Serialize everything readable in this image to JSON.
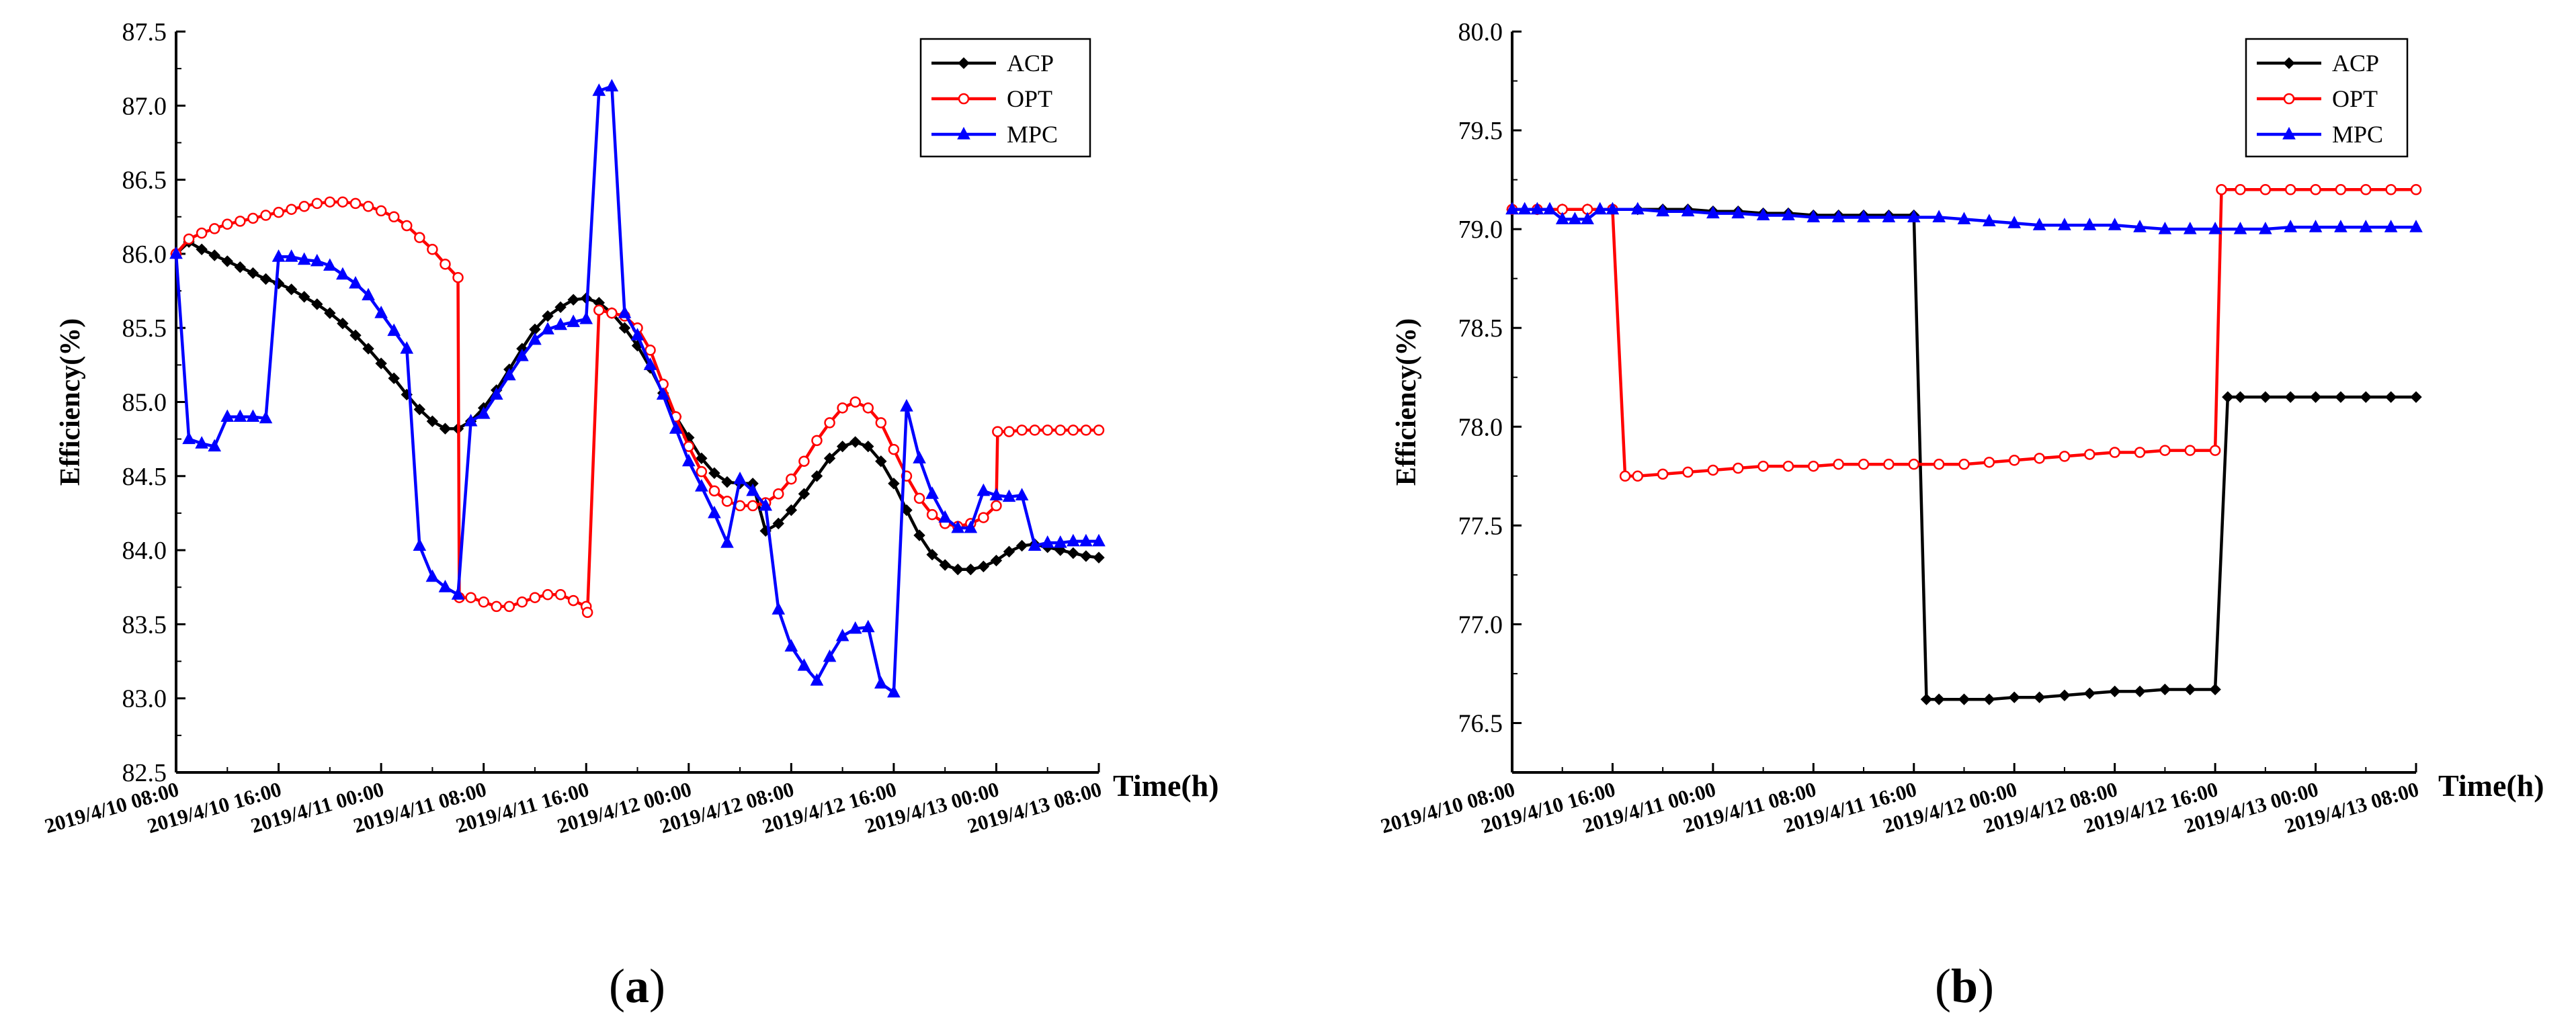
{
  "chart_data": [
    {
      "type": "line",
      "panel_label": "(a)",
      "panel_label_parts": [
        "(",
        "a",
        ")"
      ],
      "ylabel": "Efficiency(%)",
      "xlabel": "Time(h)",
      "ylim": [
        82.5,
        87.5
      ],
      "yticks": [
        "82.5",
        "83.0",
        "83.5",
        "84.0",
        "84.5",
        "85.0",
        "85.5",
        "86.0",
        "86.5",
        "87.0",
        "87.5"
      ],
      "xlim": [
        0,
        72
      ],
      "xticks": [
        "2019/4/10 08:00",
        "2019/4/10 16:00",
        "2019/4/11 00:00",
        "2019/4/11 08:00",
        "2019/4/11 16:00",
        "2019/4/12 00:00",
        "2019/4/12 08:00",
        "2019/4/12 16:00",
        "2019/4/13 00:00",
        "2019/4/13 08:00"
      ],
      "legend": "top-right",
      "grid": false,
      "series": [
        {
          "name": "ACP",
          "color": "#000000",
          "marker": "diamond",
          "x": [
            0,
            1,
            2,
            3,
            4,
            5,
            6,
            7,
            8,
            9,
            10,
            11,
            12,
            13,
            14,
            15,
            16,
            17,
            18,
            19,
            20,
            21,
            22,
            23,
            24,
            25,
            26,
            27,
            28,
            29,
            30,
            31,
            32,
            33,
            34,
            35,
            36,
            37,
            38,
            39,
            40,
            41,
            42,
            43,
            44,
            45,
            46,
            47,
            48,
            49,
            50,
            51,
            52,
            53,
            54,
            55,
            56,
            57,
            58,
            59,
            60,
            61,
            62,
            63,
            64,
            65,
            66,
            67,
            68,
            69,
            70,
            71,
            72
          ],
          "values": [
            86.0,
            86.08,
            86.03,
            85.99,
            85.95,
            85.91,
            85.87,
            85.83,
            85.8,
            85.76,
            85.71,
            85.66,
            85.6,
            85.53,
            85.45,
            85.36,
            85.26,
            85.16,
            85.05,
            84.95,
            84.87,
            84.82,
            84.82,
            84.87,
            84.96,
            85.08,
            85.22,
            85.36,
            85.49,
            85.58,
            85.64,
            85.69,
            85.7,
            85.67,
            85.6,
            85.5,
            85.38,
            85.23,
            85.06,
            84.9,
            84.76,
            84.62,
            84.52,
            84.46,
            84.45,
            84.45,
            84.13,
            84.18,
            84.27,
            84.38,
            84.5,
            84.62,
            84.7,
            84.73,
            84.7,
            84.6,
            84.45,
            84.27,
            84.1,
            83.97,
            83.9,
            83.87,
            83.87,
            83.89,
            83.93,
            83.99,
            84.03,
            84.04,
            84.02,
            84.0,
            83.98,
            83.96,
            83.95
          ]
        },
        {
          "name": "OPT",
          "color": "#ff0000",
          "marker": "circle",
          "x": [
            0,
            1,
            2,
            3,
            4,
            5,
            6,
            7,
            8,
            9,
            10,
            11,
            12,
            13,
            14,
            15,
            16,
            17,
            18,
            19,
            20,
            21,
            22,
            22.1,
            23,
            24,
            25,
            26,
            27,
            28,
            29,
            30,
            31,
            32,
            32.1,
            33,
            34,
            35,
            36,
            37,
            38,
            39,
            40,
            41,
            42,
            43,
            44,
            45,
            46,
            47,
            48,
            49,
            50,
            51,
            52,
            53,
            54,
            55,
            56,
            57,
            58,
            59,
            60,
            61,
            62,
            63,
            64,
            64.1,
            65,
            66,
            67,
            68,
            69,
            70,
            71,
            72
          ],
          "values": [
            86.0,
            86.1,
            86.14,
            86.17,
            86.2,
            86.22,
            86.24,
            86.26,
            86.28,
            86.3,
            86.32,
            86.34,
            86.35,
            86.35,
            86.34,
            86.32,
            86.29,
            86.25,
            86.19,
            86.11,
            86.03,
            85.93,
            85.84,
            83.68,
            83.68,
            83.65,
            83.62,
            83.62,
            83.65,
            83.68,
            83.7,
            83.7,
            83.66,
            83.62,
            83.58,
            85.62,
            85.6,
            85.58,
            85.5,
            85.35,
            85.12,
            84.9,
            84.7,
            84.53,
            84.4,
            84.33,
            84.3,
            84.3,
            84.32,
            84.38,
            84.48,
            84.6,
            84.74,
            84.86,
            84.96,
            85.0,
            84.96,
            84.86,
            84.68,
            84.5,
            84.35,
            84.24,
            84.18,
            84.16,
            84.18,
            84.22,
            84.3,
            84.8,
            84.8,
            84.81,
            84.81,
            84.81,
            84.81,
            84.81,
            84.81,
            84.81
          ]
        },
        {
          "name": "MPC",
          "color": "#0000ff",
          "marker": "triangle",
          "x": [
            0,
            1,
            2,
            3,
            4,
            5,
            6,
            7,
            8,
            9,
            10,
            11,
            12,
            13,
            14,
            15,
            16,
            17,
            18,
            19,
            20,
            21,
            22,
            23,
            24,
            25,
            26,
            27,
            28,
            29,
            30,
            31,
            32,
            33,
            34,
            35,
            36,
            37,
            38,
            39,
            40,
            41,
            42,
            43,
            44,
            45,
            46,
            47,
            48,
            49,
            50,
            51,
            52,
            53,
            54,
            55,
            56,
            57,
            58,
            59,
            60,
            61,
            62,
            63,
            64,
            65,
            66,
            67,
            68,
            69,
            70,
            71,
            72
          ],
          "values": [
            86.0,
            84.75,
            84.72,
            84.7,
            84.9,
            84.9,
            84.9,
            84.89,
            85.98,
            85.98,
            85.96,
            85.95,
            85.92,
            85.86,
            85.8,
            85.72,
            85.6,
            85.48,
            85.36,
            84.03,
            83.82,
            83.75,
            83.7,
            84.87,
            84.92,
            85.05,
            85.18,
            85.31,
            85.42,
            85.49,
            85.52,
            85.54,
            85.56,
            87.1,
            87.13,
            85.6,
            85.45,
            85.25,
            85.05,
            84.82,
            84.6,
            84.43,
            84.25,
            84.05,
            84.48,
            84.4,
            84.3,
            83.6,
            83.35,
            83.22,
            83.12,
            83.28,
            83.42,
            83.47,
            83.48,
            83.1,
            83.04,
            84.97,
            84.62,
            84.38,
            84.22,
            84.15,
            84.15,
            84.4,
            84.37,
            84.36,
            84.37,
            84.03,
            84.05,
            84.05,
            84.06,
            84.06,
            84.06
          ]
        }
      ]
    },
    {
      "type": "line",
      "panel_label": "(b)",
      "panel_label_parts": [
        "(",
        "b",
        ")"
      ],
      "ylabel": "Efficiency(%)",
      "xlabel": "Time(h)",
      "ylim": [
        76.25,
        80.0
      ],
      "yticks": [
        "76.5",
        "77.0",
        "77.5",
        "78.0",
        "78.5",
        "79.0",
        "79.5",
        "80.0"
      ],
      "xlim": [
        0,
        72
      ],
      "xticks": [
        "2019/4/10 08:00",
        "2019/4/10 16:00",
        "2019/4/11 00:00",
        "2019/4/11 08:00",
        "2019/4/11 16:00",
        "2019/4/12 00:00",
        "2019/4/12 08:00",
        "2019/4/12 16:00",
        "2019/4/13 00:00",
        "2019/4/13 08:00"
      ],
      "legend": "top-right",
      "grid": false,
      "series": [
        {
          "name": "ACP",
          "color": "#000000",
          "marker": "diamond",
          "x": [
            0,
            2,
            4,
            6,
            8,
            10,
            12,
            14,
            16,
            18,
            20,
            22,
            24,
            26,
            28,
            30,
            32,
            33,
            34,
            36,
            38,
            40,
            42,
            44,
            46,
            48,
            50,
            52,
            54,
            56,
            57,
            58,
            60,
            62,
            64,
            66,
            68,
            70,
            72
          ],
          "values": [
            79.1,
            79.1,
            79.1,
            79.1,
            79.1,
            79.1,
            79.1,
            79.1,
            79.09,
            79.09,
            79.08,
            79.08,
            79.07,
            79.07,
            79.07,
            79.07,
            79.07,
            76.62,
            76.62,
            76.62,
            76.62,
            76.63,
            76.63,
            76.64,
            76.65,
            76.66,
            76.66,
            76.67,
            76.67,
            76.67,
            78.15,
            78.15,
            78.15,
            78.15,
            78.15,
            78.15,
            78.15,
            78.15,
            78.15
          ]
        },
        {
          "name": "OPT",
          "color": "#ff0000",
          "marker": "circle",
          "x": [
            0,
            2,
            4,
            6,
            8,
            9,
            10,
            12,
            14,
            16,
            18,
            20,
            22,
            24,
            26,
            28,
            30,
            32,
            34,
            36,
            38,
            40,
            42,
            44,
            46,
            48,
            50,
            52,
            54,
            56,
            56.5,
            58,
            60,
            62,
            64,
            66,
            68,
            70,
            72
          ],
          "values": [
            79.1,
            79.1,
            79.1,
            79.1,
            79.1,
            77.75,
            77.75,
            77.76,
            77.77,
            77.78,
            77.79,
            77.8,
            77.8,
            77.8,
            77.81,
            77.81,
            77.81,
            77.81,
            77.81,
            77.81,
            77.82,
            77.83,
            77.84,
            77.85,
            77.86,
            77.87,
            77.87,
            77.88,
            77.88,
            77.88,
            79.2,
            79.2,
            79.2,
            79.2,
            79.2,
            79.2,
            79.2,
            79.2,
            79.2
          ]
        },
        {
          "name": "MPC",
          "color": "#0000ff",
          "marker": "triangle",
          "x": [
            0,
            1,
            2,
            3,
            4,
            5,
            6,
            7,
            8,
            10,
            12,
            14,
            16,
            18,
            20,
            22,
            24,
            26,
            28,
            30,
            32,
            34,
            36,
            38,
            40,
            42,
            44,
            46,
            48,
            50,
            52,
            54,
            56,
            58,
            60,
            62,
            64,
            66,
            68,
            70,
            72
          ],
          "values": [
            79.1,
            79.1,
            79.1,
            79.1,
            79.05,
            79.05,
            79.05,
            79.1,
            79.1,
            79.1,
            79.09,
            79.09,
            79.08,
            79.08,
            79.07,
            79.07,
            79.06,
            79.06,
            79.06,
            79.06,
            79.06,
            79.06,
            79.05,
            79.04,
            79.03,
            79.02,
            79.02,
            79.02,
            79.02,
            79.01,
            79.0,
            79.0,
            79.0,
            79.0,
            79.0,
            79.01,
            79.01,
            79.01,
            79.01,
            79.01,
            79.01
          ]
        }
      ]
    }
  ]
}
